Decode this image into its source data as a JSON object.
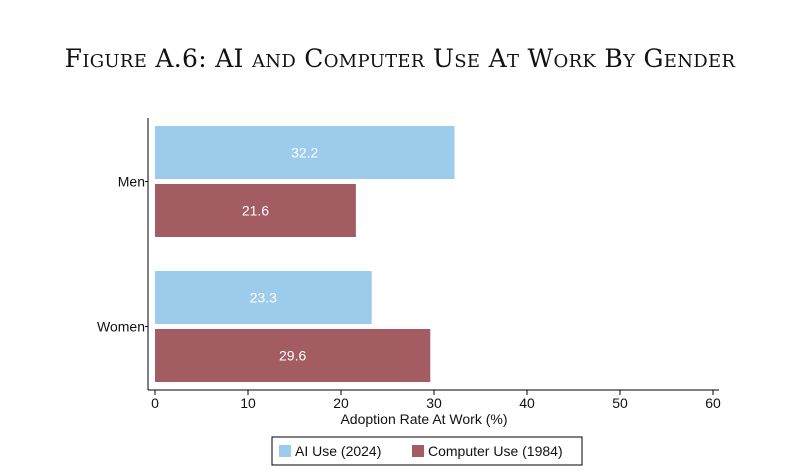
{
  "figure": {
    "title": "Figure A.6: AI and Computer Use At Work By Gender"
  },
  "chart_data": {
    "type": "bar",
    "orientation": "horizontal",
    "title": "",
    "categories": [
      "Men",
      "Women"
    ],
    "series": [
      {
        "name": "AI Use (2024)",
        "color": "#9ccbec",
        "values": [
          32.2,
          23.3
        ]
      },
      {
        "name": "Computer Use (1984)",
        "color": "#a35c62",
        "values": [
          21.6,
          29.6
        ]
      }
    ],
    "xlabel": "Adoption Rate At Work (%)",
    "ylabel": "",
    "xlim": [
      0,
      60
    ],
    "xticks": [
      0,
      10,
      20,
      30,
      40,
      50,
      60
    ],
    "data_labels": true,
    "grid": false,
    "legend_position": "bottom"
  }
}
